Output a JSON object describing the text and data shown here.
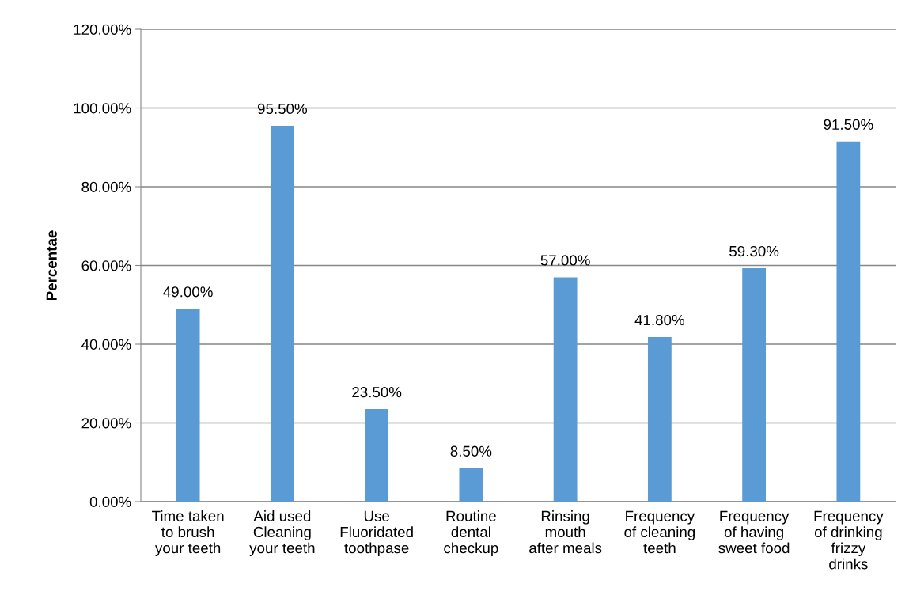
{
  "chart_data": {
    "type": "bar",
    "ylabel": "Percentae",
    "categories": [
      "Time taken\nto brush\nyour teeth",
      "Aid used\nCleaning\nyour teeth",
      "Use\nFluoridated\ntoothpase",
      "Routine\ndental\ncheckup",
      "Rinsing\nmouth\nafter meals",
      "Frequency\nof cleaning\nteeth",
      "Frequency\nof having\nsweet food",
      "Frequency\nof drinking\nfrizzy\ndrinks"
    ],
    "values": [
      49,
      95.5,
      23.5,
      8.5,
      57,
      41.8,
      59.3,
      91.5
    ],
    "value_labels": [
      "49.00%",
      "95.50%",
      "23.50%",
      "8.50%",
      "57.00%",
      "41.80%",
      "59.30%",
      "91.50%"
    ],
    "color": "#5b9bd5",
    "ylim": [
      0,
      120
    ],
    "yticks": [
      {
        "value": 0,
        "label": "0.00%"
      },
      {
        "value": 20,
        "label": "20.00%"
      },
      {
        "value": 40,
        "label": "40.00%"
      },
      {
        "value": 60,
        "label": "60.00%"
      },
      {
        "value": 80,
        "label": "80.00%"
      },
      {
        "value": 100,
        "label": "100.00%"
      },
      {
        "value": 120,
        "label": "120.00%"
      }
    ],
    "grid": "y"
  }
}
